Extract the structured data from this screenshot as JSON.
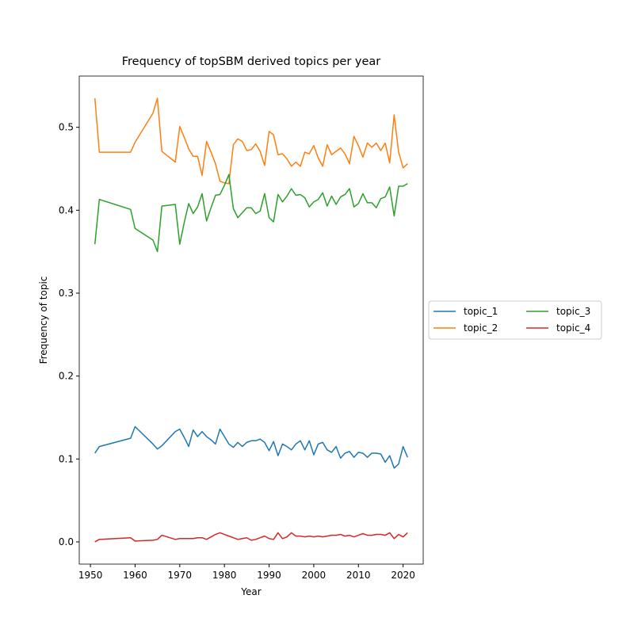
{
  "chart_data": {
    "type": "line",
    "title": "Frequency of topSBM derived topics per year",
    "xlabel": "Year",
    "ylabel": "Frequency of topic",
    "x": [
      1951,
      1952,
      1959,
      1960,
      1964,
      1965,
      1966,
      1969,
      1970,
      1971,
      1972,
      1973,
      1974,
      1975,
      1976,
      1977,
      1978,
      1979,
      1980,
      1981,
      1982,
      1983,
      1984,
      1985,
      1986,
      1987,
      1988,
      1989,
      1990,
      1991,
      1992,
      1993,
      1994,
      1995,
      1996,
      1997,
      1998,
      1999,
      2000,
      2001,
      2002,
      2003,
      2004,
      2005,
      2006,
      2007,
      2008,
      2009,
      2010,
      2011,
      2012,
      2013,
      2014,
      2015,
      2016,
      2017,
      2018,
      2019,
      2020,
      2021
    ],
    "series": [
      {
        "name": "topic_1",
        "color": "#1f77b4",
        "values": [
          0.107,
          0.115,
          0.125,
          0.139,
          0.118,
          0.112,
          0.116,
          0.133,
          0.136,
          0.126,
          0.115,
          0.135,
          0.127,
          0.133,
          0.127,
          0.123,
          0.118,
          0.136,
          0.127,
          0.118,
          0.114,
          0.12,
          0.115,
          0.12,
          0.122,
          0.122,
          0.124,
          0.12,
          0.11,
          0.121,
          0.104,
          0.118,
          0.115,
          0.111,
          0.118,
          0.122,
          0.111,
          0.122,
          0.105,
          0.118,
          0.12,
          0.111,
          0.108,
          0.115,
          0.101,
          0.107,
          0.109,
          0.102,
          0.108,
          0.107,
          0.102,
          0.107,
          0.107,
          0.106,
          0.096,
          0.104,
          0.089,
          0.094,
          0.115,
          0.102
        ]
      },
      {
        "name": "topic_2",
        "color": "#ff7f0e",
        "values": [
          0.535,
          0.47,
          0.47,
          0.482,
          0.517,
          0.535,
          0.471,
          0.458,
          0.501,
          0.488,
          0.474,
          0.465,
          0.465,
          0.442,
          0.483,
          0.47,
          0.456,
          0.435,
          0.433,
          0.432,
          0.479,
          0.486,
          0.483,
          0.472,
          0.473,
          0.48,
          0.471,
          0.454,
          0.495,
          0.491,
          0.467,
          0.468,
          0.462,
          0.453,
          0.458,
          0.453,
          0.47,
          0.468,
          0.478,
          0.463,
          0.453,
          0.479,
          0.467,
          0.471,
          0.475,
          0.468,
          0.456,
          0.489,
          0.478,
          0.464,
          0.481,
          0.476,
          0.481,
          0.472,
          0.481,
          0.457,
          0.515,
          0.47,
          0.451,
          0.456
        ]
      },
      {
        "name": "topic_3",
        "color": "#2ca02c",
        "values": [
          0.359,
          0.413,
          0.401,
          0.378,
          0.364,
          0.35,
          0.405,
          0.407,
          0.359,
          0.385,
          0.408,
          0.396,
          0.404,
          0.42,
          0.387,
          0.403,
          0.418,
          0.419,
          0.43,
          0.443,
          0.402,
          0.391,
          0.397,
          0.403,
          0.403,
          0.396,
          0.399,
          0.42,
          0.391,
          0.386,
          0.419,
          0.41,
          0.417,
          0.426,
          0.418,
          0.419,
          0.415,
          0.404,
          0.41,
          0.413,
          0.421,
          0.405,
          0.417,
          0.407,
          0.416,
          0.419,
          0.426,
          0.404,
          0.408,
          0.42,
          0.409,
          0.409,
          0.403,
          0.414,
          0.416,
          0.428,
          0.393,
          0.429,
          0.429,
          0.432
        ]
      },
      {
        "name": "topic_4",
        "color": "#d62728",
        "values": [
          0.0,
          0.003,
          0.005,
          0.001,
          0.002,
          0.003,
          0.008,
          0.003,
          0.004,
          0.004,
          0.004,
          0.004,
          0.005,
          0.005,
          0.003,
          0.006,
          0.009,
          0.011,
          0.009,
          0.007,
          0.005,
          0.003,
          0.004,
          0.005,
          0.002,
          0.003,
          0.005,
          0.007,
          0.004,
          0.003,
          0.011,
          0.004,
          0.006,
          0.011,
          0.007,
          0.007,
          0.006,
          0.007,
          0.006,
          0.007,
          0.006,
          0.007,
          0.008,
          0.008,
          0.009,
          0.007,
          0.008,
          0.006,
          0.008,
          0.01,
          0.008,
          0.008,
          0.009,
          0.009,
          0.008,
          0.011,
          0.004,
          0.009,
          0.006,
          0.011
        ]
      }
    ],
    "xlim": [
      1947.5,
      2024.5
    ],
    "xticks": [
      1950,
      1960,
      1970,
      1980,
      1990,
      2000,
      2010,
      2020
    ],
    "ylim": [
      -0.0268,
      0.5618
    ],
    "yticks": [
      {
        "value": 0,
        "label": "0.0"
      },
      0.1,
      0.2,
      0.3,
      0.4,
      0.5
    ],
    "legend": "center left outside",
    "legend_columns": 2
  }
}
